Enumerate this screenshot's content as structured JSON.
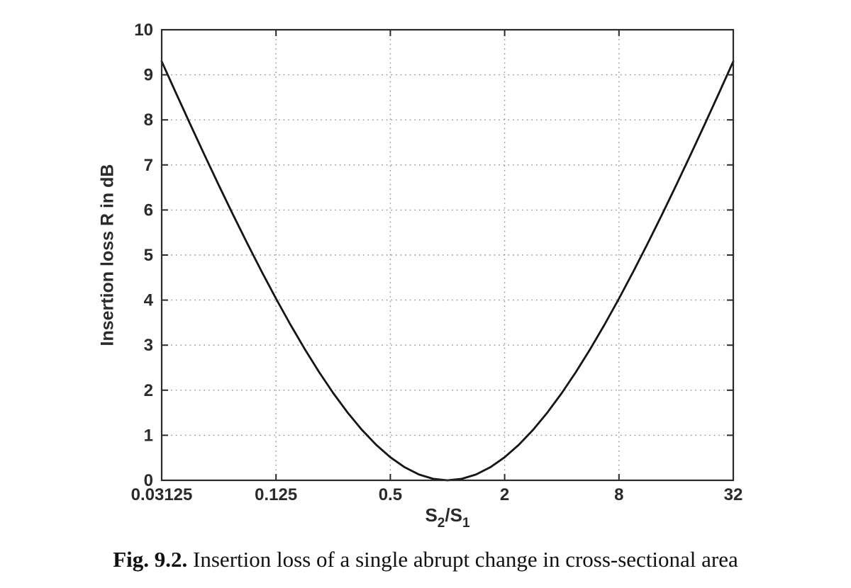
{
  "chart_data": {
    "type": "line",
    "title": "",
    "xlabel": "S2/S1",
    "ylabel": "Insertion loss R in dB",
    "x_scale": "log",
    "xlim_log2": [
      -5,
      5
    ],
    "ylim": [
      0,
      10
    ],
    "grid": "dotted",
    "legend": "none",
    "x_ticks": [
      {
        "log2": -5,
        "label": "0.03125"
      },
      {
        "log2": -3,
        "label": "0.125"
      },
      {
        "log2": -1,
        "label": "0.5"
      },
      {
        "log2": 1,
        "label": "2"
      },
      {
        "log2": 3,
        "label": "8"
      },
      {
        "log2": 5,
        "label": "32"
      }
    ],
    "y_ticks": [
      0,
      1,
      2,
      3,
      4,
      5,
      6,
      7,
      8,
      9,
      10
    ],
    "grid_x_log2": [
      -3,
      -1,
      1,
      3
    ],
    "grid_y": [
      1,
      2,
      3,
      4,
      5,
      6,
      7,
      8,
      9
    ],
    "series": [
      {
        "name": "insertion-loss-curve",
        "log2_x": [
          -5,
          -4.75,
          -4.5,
          -4.25,
          -4,
          -3.75,
          -3.5,
          -3.25,
          -3,
          -2.75,
          -2.5,
          -2.25,
          -2,
          -1.75,
          -1.5,
          -1.25,
          -1,
          -0.75,
          -0.5,
          -0.25,
          0,
          0.25,
          0.5,
          0.75,
          1,
          1.25,
          1.5,
          1.75,
          2,
          2.25,
          2.5,
          2.75,
          3,
          3.25,
          3.5,
          3.75,
          4,
          4.25,
          4.5,
          4.75,
          5
        ],
        "y": [
          9.298,
          8.595,
          7.901,
          7.218,
          6.547,
          5.891,
          5.251,
          4.631,
          4.033,
          3.461,
          2.919,
          2.41,
          1.938,
          1.508,
          1.124,
          0.791,
          0.512,
          0.29,
          0.13,
          0.033,
          0.0,
          0.033,
          0.13,
          0.29,
          0.512,
          0.791,
          1.124,
          1.508,
          1.938,
          2.41,
          2.919,
          3.461,
          4.033,
          4.631,
          5.251,
          5.891,
          6.547,
          7.218,
          7.901,
          8.595,
          9.298
        ]
      }
    ]
  },
  "labels": {
    "ylabel": "Insertion loss R in dB",
    "xlabel_base1": "S",
    "xlabel_sub1": "2",
    "xlabel_mid": "/S",
    "xlabel_sub2": "1"
  },
  "caption": {
    "prefix": "Fig. 9.2.",
    "text": " Insertion loss of a single abrupt change in cross-sectional area"
  },
  "colors": {
    "curve": "#151515",
    "axis": "#2a2a2a",
    "grid": "#8f8f8f",
    "background": "#ffffff"
  }
}
